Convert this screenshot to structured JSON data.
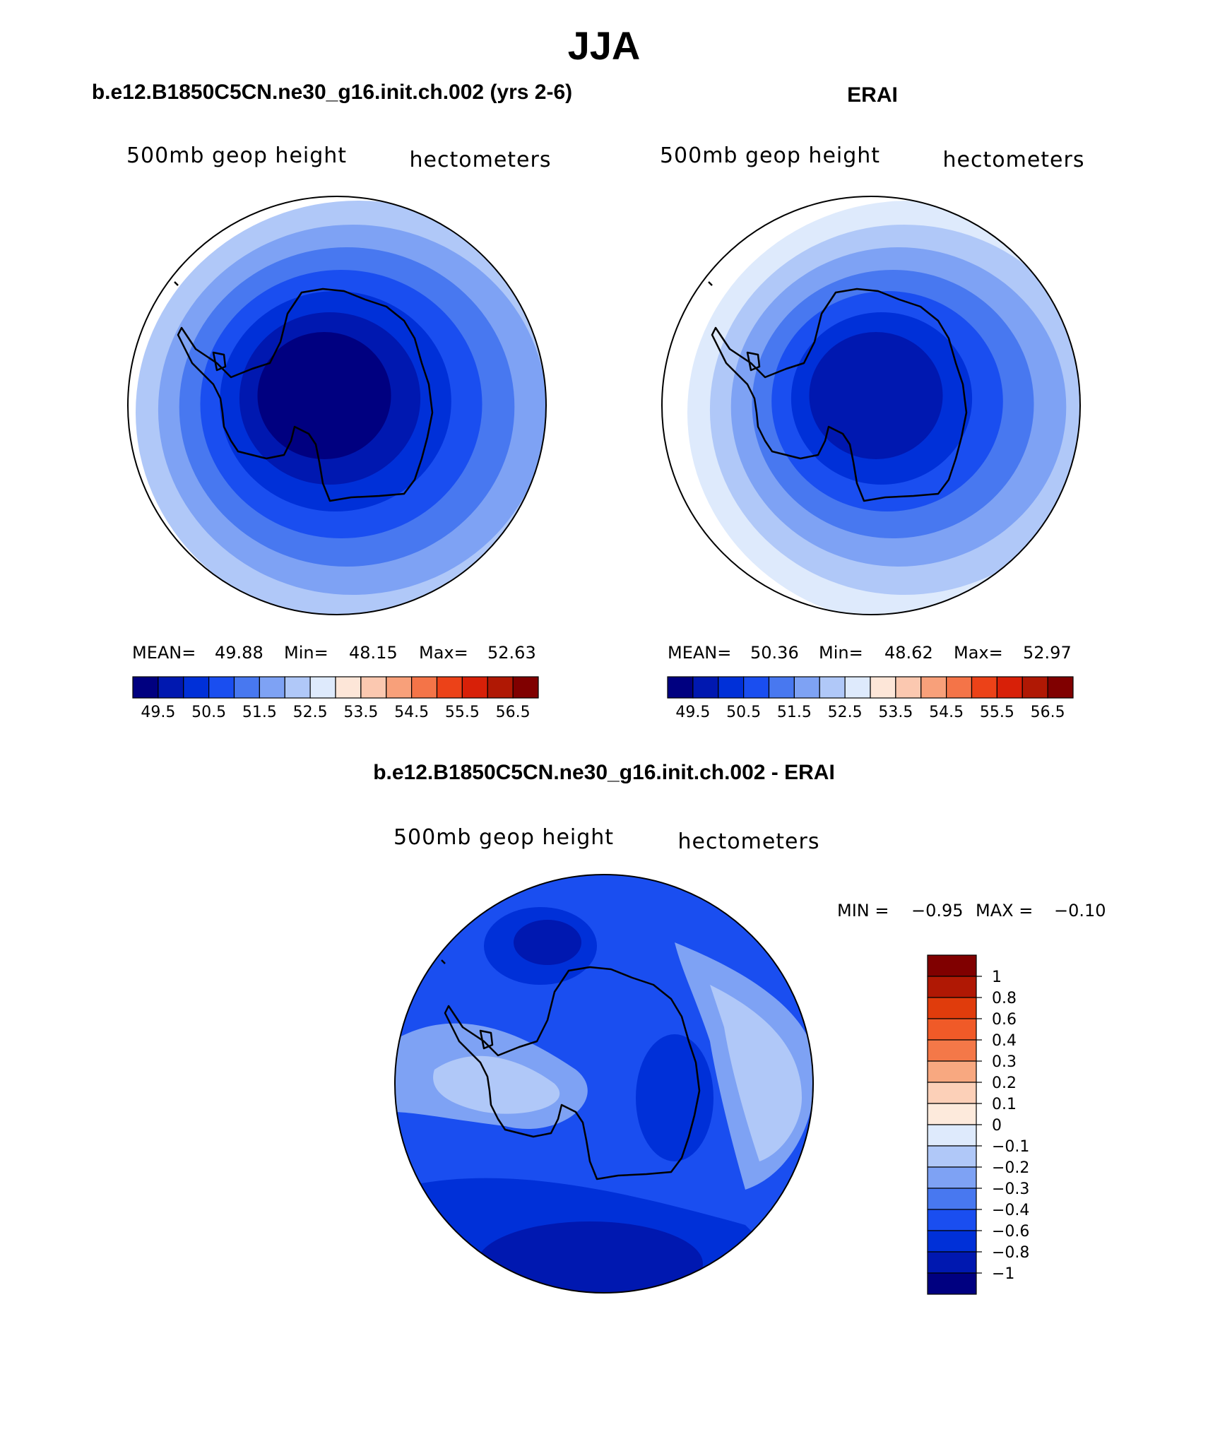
{
  "figure": {
    "title": "JJA"
  },
  "panels": [
    {
      "id": "model",
      "title": "b.e12.B1850C5CN.ne30_g16.init.ch.002 (yrs 2-6)",
      "left_label": "500mb geop height",
      "right_label": "hectometers",
      "stats": {
        "mean_label": "MEAN=",
        "mean": "49.88",
        "min_label": "Min=",
        "min": "48.15",
        "max_label": "Max=",
        "max": "52.63"
      }
    },
    {
      "id": "obs",
      "title": "ERAI",
      "left_label": "500mb geop height",
      "right_label": "hectometers",
      "stats": {
        "mean_label": "MEAN=",
        "mean": "50.36",
        "min_label": "Min=",
        "min": "48.62",
        "max_label": "Max=",
        "max": "52.97"
      }
    },
    {
      "id": "diff",
      "title": "b.e12.B1850C5CN.ne30_g16.init.ch.002 - ERAI",
      "left_label": "500mb geop height",
      "right_label": "hectometers",
      "stats": {
        "min_label": "MIN =",
        "min": "−0.95",
        "max_label": "MAX =",
        "max": "−0.10"
      }
    }
  ],
  "colorbar_abs": {
    "colors": [
      "#000080",
      "#0018b0",
      "#0030d8",
      "#1a4ef0",
      "#4878f0",
      "#7ea2f4",
      "#b0c8f8",
      "#deeafc",
      "#fde6d8",
      "#fbc8b0",
      "#f8a07a",
      "#f47448",
      "#ec4218",
      "#d82008",
      "#b01804",
      "#800000"
    ],
    "tick_labels": [
      "49.5",
      "50.5",
      "51.5",
      "52.5",
      "53.5",
      "54.5",
      "55.5",
      "56.5"
    ]
  },
  "colorbar_diff": {
    "colors": [
      "#800000",
      "#b01804",
      "#e03c0c",
      "#f05a28",
      "#f47848",
      "#f8a880",
      "#fcd0b8",
      "#fdeadc",
      "#deeafc",
      "#b0c8f8",
      "#7ea2f4",
      "#4878f0",
      "#1a4ef0",
      "#0030d8",
      "#0018b0",
      "#000080"
    ],
    "tick_labels": [
      "1",
      "0.8",
      "0.6",
      "0.4",
      "0.3",
      "0.2",
      "0.1",
      "0",
      "−0.1",
      "−0.2",
      "−0.3",
      "−0.4",
      "−0.6",
      "−0.8",
      "−1"
    ]
  },
  "map_fields": {
    "model_levels": [
      6,
      5,
      4,
      3,
      2,
      1,
      0
    ],
    "obs_levels": [
      7,
      6,
      5,
      4,
      3,
      2,
      1
    ],
    "diff_base_level": 12
  }
}
